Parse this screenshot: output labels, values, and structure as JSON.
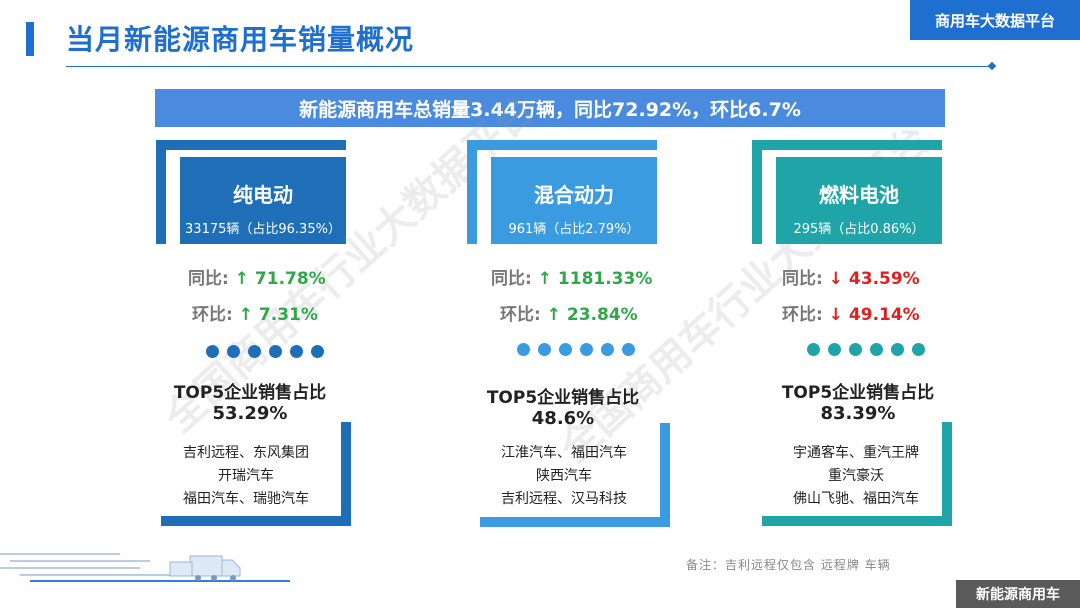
{
  "header": {
    "title": "当月新能源商用车销量概况",
    "brand": "商用车大数据平台"
  },
  "summary": "新能源商用车总销量3.44万辆，同比72.92%，环比6.7%",
  "watermark": "全国商用车行业大数据平台",
  "colors": {
    "primary": "#1f6fd1",
    "col1": "#1f6fb8",
    "col2": "#3a9be0",
    "col3": "#1fa5a8",
    "up": "#2ea84a",
    "down": "#e02020"
  },
  "categories": [
    {
      "name": "纯电动",
      "count": "33175辆（占比96.35%）",
      "yoy_label": "同比:",
      "yoy_arrow": "↑",
      "yoy_value": "71.78%",
      "mom_label": "环比:",
      "mom_arrow": "↑",
      "mom_value": "7.31%",
      "top5_title": "TOP5企业销售占比",
      "top5_pct": "53.29%",
      "companies": [
        "吉利远程、东风集团",
        "开瑞汽车",
        "福田汽车、瑞驰汽车"
      ]
    },
    {
      "name": "混合动力",
      "count": "961辆（占比2.79%）",
      "yoy_label": "同比:",
      "yoy_arrow": "↑",
      "yoy_value": "1181.33%",
      "mom_label": "环比:",
      "mom_arrow": "↑",
      "mom_value": "23.84%",
      "top5_title": "TOP5企业销售占比",
      "top5_pct": "48.6%",
      "companies": [
        "江淮汽车、福田汽车",
        "陕西汽车",
        "吉利远程、汉马科技"
      ]
    },
    {
      "name": "燃料电池",
      "count": "295辆（占比0.86%）",
      "yoy_label": "同比:",
      "yoy_arrow": "↓",
      "yoy_value": "43.59%",
      "mom_label": "环比:",
      "mom_arrow": "↓",
      "mom_value": "49.14%",
      "top5_title": "TOP5企业销售占比",
      "top5_pct": "83.39%",
      "companies": [
        "宇通客车、重汽王牌",
        "重汽豪沃",
        "佛山飞驰、福田汽车"
      ]
    }
  ],
  "note": "备注：吉利远程仅包含 远程牌 车辆",
  "footer": "新能源商用车"
}
